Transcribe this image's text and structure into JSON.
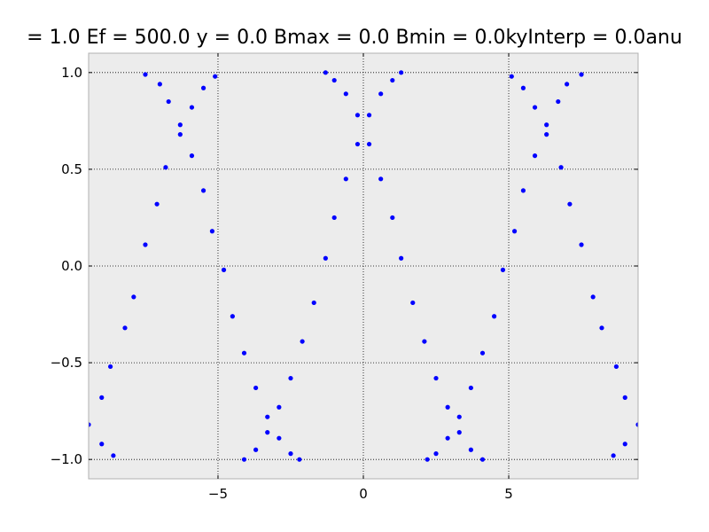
{
  "chart_data": {
    "type": "scatter",
    "title": "= 1.0 Ef = 500.0 y = 0.0 Bmax = 0.0 Bmin = 0.0kyInterp = 0.0anu",
    "xlabel": "",
    "ylabel": "",
    "xlim": [
      -9.45,
      9.45
    ],
    "ylim": [
      -1.1,
      1.1
    ],
    "xticks": [
      -5,
      0,
      5
    ],
    "xtick_labels": [
      "−5",
      "0",
      "5"
    ],
    "yticks": [
      -1.0,
      -0.5,
      0.0,
      0.5,
      1.0
    ],
    "ytick_labels": [
      "−1.0",
      "−0.5",
      "0.0",
      "0.5",
      "1.0"
    ],
    "grid": true,
    "background_color": "#ececec",
    "series": [
      {
        "color": "#0000ff",
        "points": [
          [
            -7.5,
            0.99
          ],
          [
            -7.0,
            0.94
          ],
          [
            -6.7,
            0.85
          ],
          [
            -6.3,
            0.73
          ],
          [
            -6.3,
            0.68
          ],
          [
            -6.8,
            0.51
          ],
          [
            -7.1,
            0.32
          ],
          [
            -7.5,
            0.11
          ],
          [
            -7.9,
            -0.16
          ],
          [
            -8.2,
            -0.32
          ],
          [
            -8.7,
            -0.52
          ],
          [
            -9.0,
            -0.68
          ],
          [
            -9.45,
            -0.82
          ],
          [
            -9.0,
            -0.92
          ],
          [
            -8.6,
            -0.98
          ],
          [
            -5.1,
            0.98
          ],
          [
            -5.5,
            0.92
          ],
          [
            -5.9,
            0.82
          ],
          [
            -5.9,
            0.57
          ],
          [
            -5.5,
            0.39
          ],
          [
            -5.2,
            0.18
          ],
          [
            -4.8,
            -0.02
          ],
          [
            -4.5,
            -0.26
          ],
          [
            -4.1,
            -0.45
          ],
          [
            -3.7,
            -0.63
          ],
          [
            -3.3,
            -0.78
          ],
          [
            -3.3,
            -0.86
          ],
          [
            -3.7,
            -0.95
          ],
          [
            -4.1,
            -1.0
          ],
          [
            -2.9,
            -0.73
          ],
          [
            -2.9,
            -0.89
          ],
          [
            -2.5,
            -0.97
          ],
          [
            -2.2,
            -1.0
          ],
          [
            -2.5,
            -0.58
          ],
          [
            -2.1,
            -0.39
          ],
          [
            -1.7,
            -0.19
          ],
          [
            -1.3,
            0.04
          ],
          [
            -1.0,
            0.25
          ],
          [
            -0.6,
            0.45
          ],
          [
            -0.2,
            0.63
          ],
          [
            -0.2,
            0.78
          ],
          [
            -0.6,
            0.89
          ],
          [
            -1.0,
            0.96
          ],
          [
            -1.3,
            1.0
          ],
          [
            0.2,
            0.78
          ],
          [
            0.2,
            0.63
          ],
          [
            0.6,
            0.89
          ],
          [
            1.0,
            0.96
          ],
          [
            1.3,
            1.0
          ],
          [
            0.6,
            0.45
          ],
          [
            1.0,
            0.25
          ],
          [
            1.3,
            0.04
          ],
          [
            1.7,
            -0.19
          ],
          [
            2.1,
            -0.39
          ],
          [
            2.5,
            -0.58
          ],
          [
            2.9,
            -0.73
          ],
          [
            2.9,
            -0.89
          ],
          [
            2.5,
            -0.97
          ],
          [
            2.2,
            -1.0
          ],
          [
            3.3,
            -0.78
          ],
          [
            3.3,
            -0.86
          ],
          [
            3.7,
            -0.63
          ],
          [
            3.7,
            -0.95
          ],
          [
            4.1,
            -0.45
          ],
          [
            4.1,
            -1.0
          ],
          [
            4.5,
            -0.26
          ],
          [
            4.8,
            -0.02
          ],
          [
            5.2,
            0.18
          ],
          [
            5.5,
            0.39
          ],
          [
            5.9,
            0.57
          ],
          [
            5.9,
            0.82
          ],
          [
            5.5,
            0.92
          ],
          [
            5.1,
            0.98
          ],
          [
            6.3,
            0.73
          ],
          [
            6.3,
            0.68
          ],
          [
            6.7,
            0.85
          ],
          [
            7.0,
            0.94
          ],
          [
            7.5,
            0.99
          ],
          [
            6.8,
            0.51
          ],
          [
            7.1,
            0.32
          ],
          [
            7.5,
            0.11
          ],
          [
            7.9,
            -0.16
          ],
          [
            8.2,
            -0.32
          ],
          [
            8.7,
            -0.52
          ],
          [
            9.0,
            -0.68
          ],
          [
            9.45,
            -0.82
          ],
          [
            9.0,
            -0.92
          ],
          [
            8.6,
            -0.98
          ]
        ]
      }
    ]
  }
}
